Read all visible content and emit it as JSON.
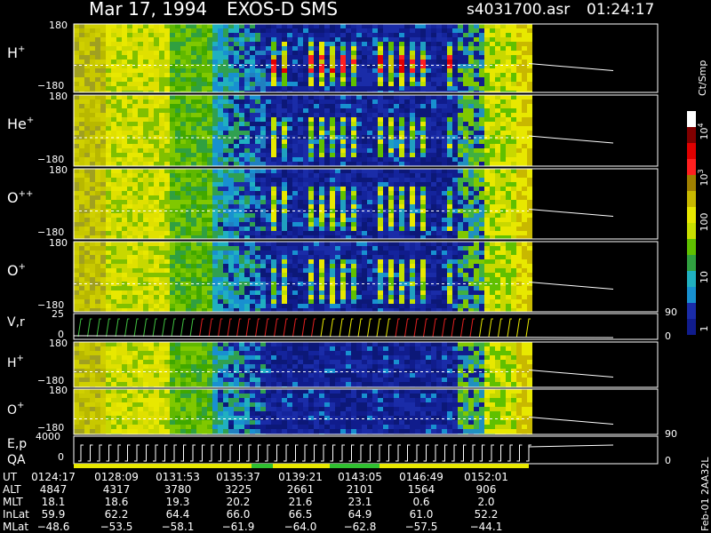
{
  "header": {
    "date": "Mar 17, 1994",
    "instrument": "EXOS-D SMS",
    "file": "s4031700.asr",
    "time": "01:24:17"
  },
  "panels": [
    {
      "label": "H",
      "sup": "+",
      "top": "180",
      "bottom": "−180"
    },
    {
      "label": "He",
      "sup": "+",
      "top": "180",
      "bottom": "−180"
    },
    {
      "label": "O",
      "sup": "++",
      "top": "180",
      "bottom": "−180"
    },
    {
      "label": "O",
      "sup": "+",
      "top": "180",
      "bottom": "−180"
    }
  ],
  "vr": {
    "label": "V,r",
    "top": "25",
    "bottom": "0",
    "right_top": "90",
    "right_bottom": "0"
  },
  "low_panels": [
    {
      "label": "H",
      "sup": "+",
      "top": "180",
      "bottom": "−180"
    },
    {
      "label": "O",
      "sup": "+",
      "top": "180",
      "bottom": "−180"
    }
  ],
  "ep": {
    "label": "E,p",
    "label2": "QA",
    "top": "4000",
    "bottom": "0",
    "right_top": "90",
    "right_bottom": "0"
  },
  "colorbar": {
    "title": "Ct/Smp",
    "ticks": [
      {
        "base": "10",
        "exp": "4"
      },
      {
        "base": "10",
        "exp": "3"
      },
      "100",
      "10",
      "1"
    ]
  },
  "table": {
    "labels": [
      "UT",
      "ALT",
      "MLT",
      "InLat",
      "MLat"
    ],
    "rows": [
      [
        "0124:17",
        "0128:09",
        "0131:53",
        "0135:37",
        "0139:21",
        "0143:05",
        "0146:49",
        "0152:01"
      ],
      [
        "4847",
        "4317",
        "3780",
        "3225",
        "2661",
        "2101",
        "1564",
        "906"
      ],
      [
        "18.1",
        "18.6",
        "19.3",
        "20.2",
        "21.6",
        "23.1",
        "0.6",
        "2.0"
      ],
      [
        "59.9",
        "62.2",
        "64.4",
        "66.0",
        "66.5",
        "64.9",
        "61.0",
        "52.2"
      ],
      [
        "−48.6",
        "−53.5",
        "−58.1",
        "−61.9",
        "−64.0",
        "−62.8",
        "−57.5",
        "−44.1"
      ]
    ]
  },
  "footer": "Feb-01 2AA32L"
}
